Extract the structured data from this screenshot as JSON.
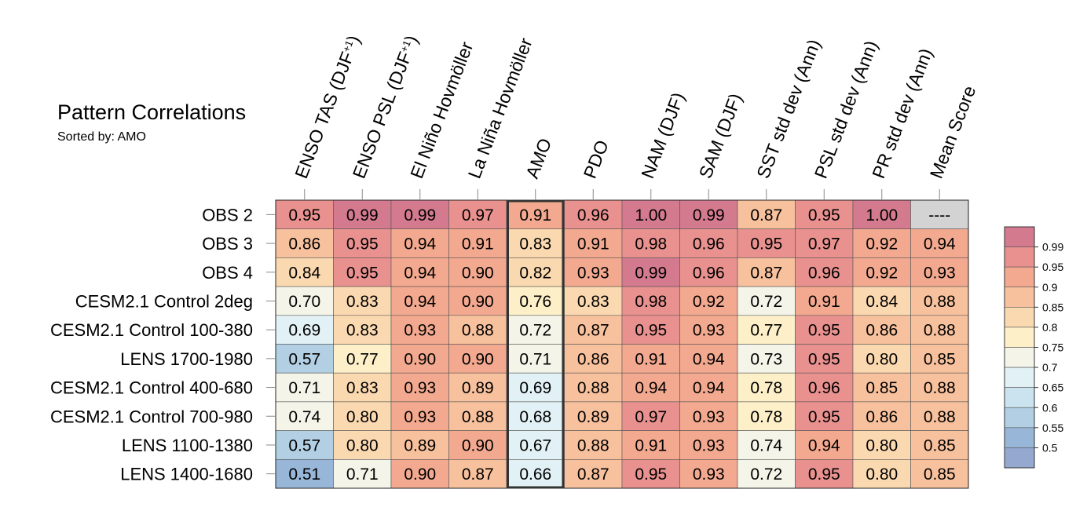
{
  "chart_data": {
    "type": "heatmap",
    "title": "Pattern Correlations",
    "subtitle": "Sorted by: AMO",
    "sorted_by": "AMO",
    "columns": [
      {
        "parts": [
          {
            "t": "ENSO TAS (DJF"
          },
          {
            "t": "+1",
            "sup": true
          },
          {
            "t": ")"
          }
        ]
      },
      {
        "parts": [
          {
            "t": "ENSO PSL (DJF"
          },
          {
            "t": "+1",
            "sup": true
          },
          {
            "t": ")"
          }
        ]
      },
      {
        "parts": [
          {
            "t": "El Niño Hovmöller"
          }
        ]
      },
      {
        "parts": [
          {
            "t": "La Niña Hovmöller"
          }
        ]
      },
      {
        "parts": [
          {
            "t": "AMO"
          }
        ]
      },
      {
        "parts": [
          {
            "t": "PDO"
          }
        ]
      },
      {
        "parts": [
          {
            "t": "NAM (DJF)"
          }
        ]
      },
      {
        "parts": [
          {
            "t": "SAM (DJF)"
          }
        ]
      },
      {
        "parts": [
          {
            "t": "SST std dev (Ann)"
          }
        ]
      },
      {
        "parts": [
          {
            "t": "PSL std dev (Ann)"
          }
        ]
      },
      {
        "parts": [
          {
            "t": "PR std dev (Ann)"
          }
        ]
      },
      {
        "parts": [
          {
            "t": "Mean Score"
          }
        ]
      }
    ],
    "rows": [
      "OBS 2",
      "OBS 3",
      "OBS 4",
      "CESM2.1 Control 2deg",
      "CESM2.1 Control 100-380",
      "LENS 1700-1980",
      "CESM2.1 Control 400-680",
      "CESM2.1 Control 700-980",
      "LENS 1100-1380",
      "LENS 1400-1680"
    ],
    "values": [
      [
        0.95,
        0.99,
        0.99,
        0.97,
        0.91,
        0.96,
        1.0,
        0.99,
        0.87,
        0.95,
        1.0,
        null
      ],
      [
        0.86,
        0.95,
        0.94,
        0.91,
        0.83,
        0.91,
        0.98,
        0.96,
        0.95,
        0.97,
        0.92,
        0.94
      ],
      [
        0.84,
        0.95,
        0.94,
        0.9,
        0.82,
        0.93,
        0.99,
        0.96,
        0.87,
        0.96,
        0.92,
        0.93
      ],
      [
        0.7,
        0.83,
        0.94,
        0.9,
        0.76,
        0.83,
        0.98,
        0.92,
        0.72,
        0.91,
        0.84,
        0.88
      ],
      [
        0.69,
        0.83,
        0.93,
        0.88,
        0.72,
        0.87,
        0.95,
        0.93,
        0.77,
        0.95,
        0.86,
        0.88
      ],
      [
        0.57,
        0.77,
        0.9,
        0.9,
        0.71,
        0.86,
        0.91,
        0.94,
        0.73,
        0.95,
        0.8,
        0.85
      ],
      [
        0.71,
        0.83,
        0.93,
        0.89,
        0.69,
        0.88,
        0.94,
        0.94,
        0.78,
        0.96,
        0.85,
        0.88
      ],
      [
        0.74,
        0.8,
        0.93,
        0.88,
        0.68,
        0.89,
        0.97,
        0.93,
        0.78,
        0.95,
        0.86,
        0.88
      ],
      [
        0.57,
        0.8,
        0.89,
        0.9,
        0.67,
        0.88,
        0.91,
        0.93,
        0.74,
        0.94,
        0.8,
        0.85
      ],
      [
        0.51,
        0.71,
        0.9,
        0.87,
        0.66,
        0.87,
        0.95,
        0.93,
        0.72,
        0.95,
        0.8,
        0.85
      ]
    ],
    "missing_label": "----",
    "missing_color": "#d3d3d3",
    "highlight_column": "AMO",
    "colorbar": {
      "levels": [
        "0.99",
        "0.95",
        "0.9",
        "0.85",
        "0.8",
        "0.75",
        "0.7",
        "0.65",
        "0.6",
        "0.55",
        "0.5"
      ],
      "level_values": [
        0.99,
        0.95,
        0.9,
        0.85,
        0.8,
        0.75,
        0.7,
        0.65,
        0.6,
        0.55,
        0.5
      ],
      "colors": [
        "#d47a8f",
        "#e8918f",
        "#f3a98f",
        "#f8c19d",
        "#fbd9b0",
        "#fdf0c9",
        "#f4f4e9",
        "#e2f1f5",
        "#cbe3ee",
        "#b2cfe3",
        "#98b6d8",
        "#95a9d0"
      ]
    }
  }
}
